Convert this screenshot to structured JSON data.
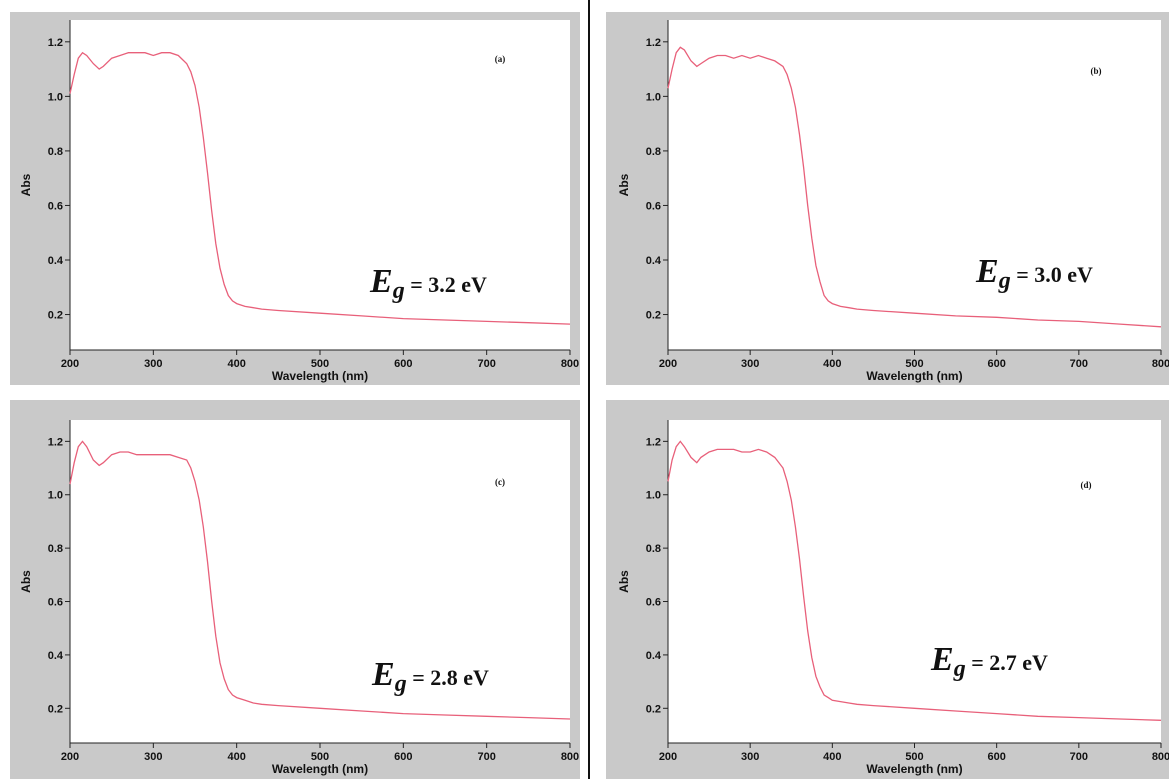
{
  "chart_data": [
    {
      "type": "line",
      "panel_label": "(a)",
      "annotation": {
        "symbol": "E",
        "subscript": "g",
        "text": " = 3.2 eV"
      },
      "xlabel": "Wavelength (nm)",
      "ylabel": "Abs",
      "xlim": [
        200,
        800
      ],
      "ylim": [
        0.07,
        1.28
      ],
      "xticks": [
        200,
        300,
        400,
        500,
        600,
        700,
        800
      ],
      "yticks": [
        0.2,
        0.4,
        0.6,
        0.8,
        1.0,
        1.2
      ],
      "ytick_labels": [
        "0.2",
        "0.4",
        "0.6",
        "0.8",
        "1.0",
        "1.2"
      ],
      "line_color": "#e8607a",
      "series": [
        {
          "x": [
            200,
            205,
            210,
            215,
            220,
            228,
            235,
            240,
            250,
            260,
            270,
            280,
            290,
            300,
            310,
            320,
            330,
            340,
            345,
            350,
            355,
            360,
            365,
            370,
            375,
            380,
            385,
            390,
            395,
            400,
            410,
            420,
            430,
            450,
            500,
            550,
            600,
            650,
            700,
            750,
            800
          ],
          "y": [
            1.01,
            1.08,
            1.14,
            1.16,
            1.15,
            1.12,
            1.1,
            1.11,
            1.14,
            1.15,
            1.16,
            1.16,
            1.16,
            1.15,
            1.16,
            1.16,
            1.15,
            1.12,
            1.09,
            1.04,
            0.96,
            0.85,
            0.72,
            0.58,
            0.46,
            0.37,
            0.31,
            0.27,
            0.25,
            0.24,
            0.23,
            0.225,
            0.22,
            0.215,
            0.205,
            0.195,
            0.185,
            0.18,
            0.175,
            0.17,
            0.165
          ]
        }
      ]
    },
    {
      "type": "line",
      "panel_label": "(b)",
      "annotation": {
        "symbol": "E",
        "subscript": "g",
        "text": " = 3.0 eV"
      },
      "xlabel": "Wavelength (nm)",
      "ylabel": "Abs",
      "xlim": [
        200,
        800
      ],
      "ylim": [
        0.07,
        1.28
      ],
      "xticks": [
        200,
        300,
        400,
        500,
        600,
        700,
        800
      ],
      "yticks": [
        0.2,
        0.4,
        0.6,
        0.8,
        1.0,
        1.2
      ],
      "ytick_labels": [
        "0.2",
        "0.4",
        "0.6",
        "0.8",
        "1.0",
        "1.2"
      ],
      "line_color": "#e8607a",
      "series": [
        {
          "x": [
            200,
            205,
            210,
            215,
            220,
            228,
            235,
            240,
            250,
            260,
            270,
            280,
            290,
            300,
            310,
            320,
            330,
            340,
            345,
            350,
            355,
            360,
            365,
            370,
            375,
            380,
            385,
            390,
            395,
            400,
            410,
            420,
            430,
            450,
            500,
            550,
            600,
            650,
            700,
            750,
            800
          ],
          "y": [
            1.03,
            1.1,
            1.16,
            1.18,
            1.17,
            1.13,
            1.11,
            1.12,
            1.14,
            1.15,
            1.15,
            1.14,
            1.15,
            1.14,
            1.15,
            1.14,
            1.13,
            1.11,
            1.08,
            1.03,
            0.96,
            0.86,
            0.74,
            0.6,
            0.48,
            0.38,
            0.32,
            0.27,
            0.25,
            0.24,
            0.23,
            0.225,
            0.22,
            0.215,
            0.205,
            0.195,
            0.19,
            0.18,
            0.175,
            0.165,
            0.155
          ]
        }
      ]
    },
    {
      "type": "line",
      "panel_label": "(c)",
      "annotation": {
        "symbol": "E",
        "subscript": "g",
        "text": " = 2.8 eV"
      },
      "xlabel": "Wavelength (nm)",
      "ylabel": "Abs",
      "xlim": [
        200,
        800
      ],
      "ylim": [
        0.07,
        1.28
      ],
      "xticks": [
        200,
        300,
        400,
        500,
        600,
        700,
        800
      ],
      "yticks": [
        0.2,
        0.4,
        0.6,
        0.8,
        1.0,
        1.2
      ],
      "ytick_labels": [
        "0.2",
        "0.4",
        "0.6",
        "0.8",
        "1.0",
        "1.2"
      ],
      "line_color": "#e8607a",
      "series": [
        {
          "x": [
            200,
            205,
            210,
            215,
            220,
            228,
            235,
            240,
            250,
            260,
            270,
            280,
            290,
            300,
            310,
            320,
            330,
            340,
            345,
            350,
            355,
            360,
            365,
            370,
            375,
            380,
            385,
            390,
            395,
            400,
            410,
            420,
            430,
            450,
            500,
            550,
            600,
            650,
            700,
            750,
            800
          ],
          "y": [
            1.04,
            1.12,
            1.18,
            1.2,
            1.18,
            1.13,
            1.11,
            1.12,
            1.15,
            1.16,
            1.16,
            1.15,
            1.15,
            1.15,
            1.15,
            1.15,
            1.14,
            1.13,
            1.1,
            1.05,
            0.98,
            0.88,
            0.75,
            0.6,
            0.47,
            0.37,
            0.31,
            0.27,
            0.25,
            0.24,
            0.23,
            0.22,
            0.215,
            0.21,
            0.2,
            0.19,
            0.18,
            0.175,
            0.17,
            0.165,
            0.16
          ]
        }
      ]
    },
    {
      "type": "line",
      "panel_label": "(d)",
      "annotation": {
        "symbol": "E",
        "subscript": "g",
        "text": " = 2.7 eV"
      },
      "xlabel": "Wavelength (nm)",
      "ylabel": "Abs",
      "xlim": [
        200,
        800
      ],
      "ylim": [
        0.07,
        1.28
      ],
      "xticks": [
        200,
        300,
        400,
        500,
        600,
        700,
        800
      ],
      "yticks": [
        0.2,
        0.4,
        0.6,
        0.8,
        1.0,
        1.2
      ],
      "ytick_labels": [
        "0.2",
        "0.4",
        "0.6",
        "0.8",
        "1.0",
        "1.2"
      ],
      "line_color": "#e8607a",
      "series": [
        {
          "x": [
            200,
            205,
            210,
            215,
            220,
            228,
            235,
            240,
            250,
            260,
            270,
            280,
            290,
            300,
            310,
            320,
            330,
            340,
            345,
            350,
            355,
            360,
            365,
            370,
            375,
            380,
            385,
            390,
            395,
            400,
            410,
            420,
            430,
            450,
            500,
            550,
            600,
            650,
            700,
            750,
            800
          ],
          "y": [
            1.05,
            1.13,
            1.18,
            1.2,
            1.18,
            1.14,
            1.12,
            1.14,
            1.16,
            1.17,
            1.17,
            1.17,
            1.16,
            1.16,
            1.17,
            1.16,
            1.14,
            1.1,
            1.05,
            0.98,
            0.88,
            0.76,
            0.62,
            0.49,
            0.39,
            0.32,
            0.28,
            0.25,
            0.24,
            0.23,
            0.225,
            0.22,
            0.215,
            0.21,
            0.2,
            0.19,
            0.18,
            0.17,
            0.165,
            0.16,
            0.155
          ]
        }
      ]
    }
  ]
}
